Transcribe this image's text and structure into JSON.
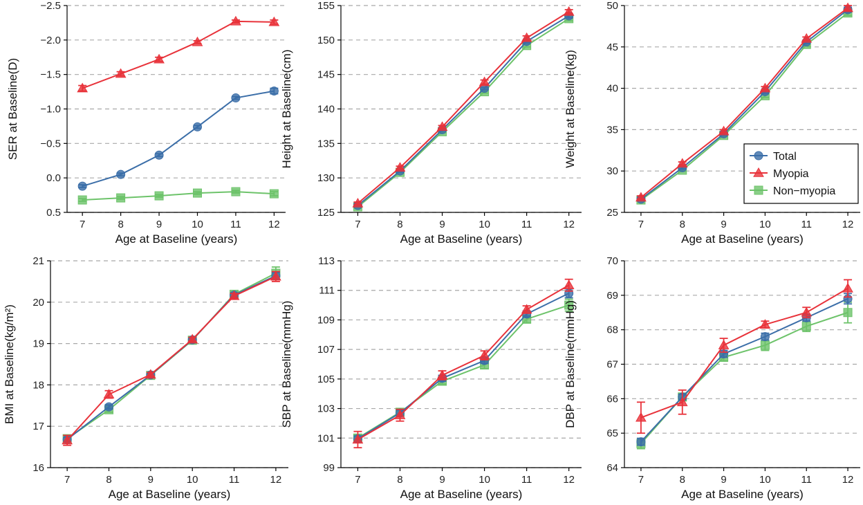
{
  "colors": {
    "Total": "#3b6ea8",
    "Myopia": "#e8323a",
    "Non-myopia": "#6dc36a"
  },
  "legend": {
    "entries": [
      "Total",
      "Myopia",
      "Non−myopia"
    ],
    "panel_index": 2,
    "placement": "middle-right"
  },
  "chart_data": [
    {
      "type": "line",
      "xlabel": "Age at Baseline (years)",
      "ylabel": "SER at Baseline(D)",
      "x": [
        7,
        8,
        9,
        10,
        11,
        12
      ],
      "ylim": [
        0.5,
        -2.5
      ],
      "yticks": [
        0.5,
        0.0,
        -0.5,
        -1.0,
        -1.5,
        -2.0,
        -2.5
      ],
      "yticklabels": [
        "0.5",
        "0.0",
        "−0.5",
        "−1.0",
        "−1.5",
        "−2.0",
        "−2.5"
      ],
      "series": [
        {
          "name": "Total",
          "values": [
            0.12,
            -0.05,
            -0.33,
            -0.74,
            -1.16,
            -1.26
          ],
          "err": [
            0.02,
            0.02,
            0.02,
            0.02,
            0.02,
            0.04
          ]
        },
        {
          "name": "Myopia",
          "values": [
            -1.3,
            -1.51,
            -1.72,
            -1.97,
            -2.27,
            -2.26
          ],
          "err": [
            0.04,
            0.03,
            0.03,
            0.02,
            0.02,
            0.03
          ]
        },
        {
          "name": "Non-myopia",
          "values": [
            0.32,
            0.29,
            0.26,
            0.22,
            0.2,
            0.23
          ],
          "err": [
            0.02,
            0.02,
            0.02,
            0.02,
            0.02,
            0.03
          ]
        }
      ]
    },
    {
      "type": "line",
      "xlabel": "Age at Baseline (years)",
      "ylabel": "Height at Baseline(cm)",
      "x": [
        7,
        8,
        9,
        10,
        11,
        12
      ],
      "ylim": [
        125,
        155
      ],
      "yticks": [
        125,
        130,
        135,
        140,
        145,
        150,
        155
      ],
      "yticklabels": [
        "125",
        "130",
        "135",
        "140",
        "145",
        "150",
        "155"
      ],
      "series": [
        {
          "name": "Total",
          "values": [
            126.0,
            131.0,
            137.0,
            143.0,
            149.8,
            153.5
          ],
          "err": [
            0.15,
            0.15,
            0.15,
            0.15,
            0.2,
            0.3
          ]
        },
        {
          "name": "Myopia",
          "values": [
            126.3,
            131.5,
            137.4,
            143.9,
            150.3,
            154.1
          ],
          "err": [
            0.2,
            0.2,
            0.2,
            0.3,
            0.3,
            0.3
          ]
        },
        {
          "name": "Non-myopia",
          "values": [
            125.8,
            130.8,
            136.7,
            142.5,
            149.2,
            153.1
          ],
          "err": [
            0.15,
            0.15,
            0.15,
            0.2,
            0.2,
            0.3
          ]
        }
      ]
    },
    {
      "type": "line",
      "xlabel": "Age at Baseline (years)",
      "ylabel": "Weight at Baseline(kg)",
      "x": [
        7,
        8,
        9,
        10,
        11,
        12
      ],
      "ylim": [
        25,
        50
      ],
      "yticks": [
        25,
        30,
        35,
        40,
        45,
        50
      ],
      "yticklabels": [
        "25",
        "30",
        "35",
        "40",
        "45",
        "50"
      ],
      "series": [
        {
          "name": "Total",
          "values": [
            26.6,
            30.4,
            34.5,
            39.6,
            45.6,
            49.5
          ],
          "err": [
            0.15,
            0.15,
            0.15,
            0.2,
            0.2,
            0.3
          ]
        },
        {
          "name": "Myopia",
          "values": [
            26.8,
            30.9,
            34.8,
            40.0,
            46.0,
            49.7
          ],
          "err": [
            0.2,
            0.2,
            0.2,
            0.2,
            0.2,
            0.3
          ]
        },
        {
          "name": "Non-myopia",
          "values": [
            26.5,
            30.1,
            34.3,
            39.1,
            45.3,
            49.1
          ],
          "err": [
            0.15,
            0.15,
            0.15,
            0.2,
            0.2,
            0.3
          ]
        }
      ]
    },
    {
      "type": "line",
      "xlabel": "Age at Baseline (years)",
      "ylabel": "BMI at Baseline(kg/m²)",
      "x": [
        7,
        8,
        9,
        10,
        11,
        12
      ],
      "ylim": [
        16,
        21
      ],
      "yticks": [
        16,
        17,
        18,
        19,
        20,
        21
      ],
      "yticklabels": [
        "16",
        "17",
        "18",
        "19",
        "20",
        "21"
      ],
      "series": [
        {
          "name": "Total",
          "values": [
            16.68,
            17.47,
            18.24,
            19.09,
            20.17,
            20.64
          ],
          "err": [
            0.05,
            0.05,
            0.04,
            0.04,
            0.05,
            0.08
          ]
        },
        {
          "name": "Myopia",
          "values": [
            16.66,
            17.77,
            18.25,
            19.1,
            20.15,
            20.62
          ],
          "err": [
            0.12,
            0.09,
            0.05,
            0.05,
            0.06,
            0.12
          ]
        },
        {
          "name": "Non-myopia",
          "values": [
            16.7,
            17.4,
            18.23,
            19.08,
            20.19,
            20.7
          ],
          "err": [
            0.05,
            0.06,
            0.05,
            0.05,
            0.06,
            0.15
          ]
        }
      ]
    },
    {
      "type": "line",
      "xlabel": "Age at Baseline (years)",
      "ylabel": "SBP at Baseline(mmHg)",
      "x": [
        7,
        8,
        9,
        10,
        11,
        12
      ],
      "ylim": [
        99,
        113
      ],
      "yticks": [
        99,
        101,
        103,
        105,
        107,
        109,
        111,
        113
      ],
      "yticklabels": [
        "99",
        "101",
        "103",
        "105",
        "107",
        "109",
        "111",
        "113"
      ],
      "series": [
        {
          "name": "Total",
          "values": [
            100.95,
            102.7,
            105.05,
            106.25,
            109.4,
            110.8
          ],
          "err": [
            0.2,
            0.2,
            0.2,
            0.2,
            0.2,
            0.3
          ]
        },
        {
          "name": "Myopia",
          "values": [
            100.9,
            102.55,
            105.25,
            106.6,
            109.7,
            111.35
          ],
          "err": [
            0.55,
            0.4,
            0.3,
            0.3,
            0.25,
            0.4
          ]
        },
        {
          "name": "Non-myopia",
          "values": [
            101.0,
            102.75,
            104.85,
            105.95,
            109.05,
            110.0
          ],
          "err": [
            0.2,
            0.2,
            0.2,
            0.25,
            0.25,
            0.4
          ]
        }
      ]
    },
    {
      "type": "line",
      "xlabel": "Age at Baseline (years)",
      "ylabel": "DBP at Baseline(mmHg)",
      "x": [
        7,
        8,
        9,
        10,
        11,
        12
      ],
      "ylim": [
        64,
        70
      ],
      "yticks": [
        64,
        65,
        66,
        67,
        68,
        69,
        70
      ],
      "yticklabels": [
        "64",
        "65",
        "66",
        "67",
        "68",
        "69",
        "70"
      ],
      "series": [
        {
          "name": "Total",
          "values": [
            64.75,
            66.05,
            67.3,
            67.8,
            68.35,
            68.9
          ],
          "err": [
            0.1,
            0.08,
            0.1,
            0.1,
            0.1,
            0.15
          ]
        },
        {
          "name": "Myopia",
          "values": [
            65.45,
            65.9,
            67.55,
            68.15,
            68.5,
            69.2
          ],
          "err": [
            0.45,
            0.35,
            0.2,
            0.1,
            0.15,
            0.25
          ]
        },
        {
          "name": "Non-myopia",
          "values": [
            64.7,
            66.05,
            67.2,
            67.55,
            68.1,
            68.5
          ],
          "err": [
            0.15,
            0.1,
            0.1,
            0.15,
            0.15,
            0.3
          ]
        }
      ]
    }
  ]
}
